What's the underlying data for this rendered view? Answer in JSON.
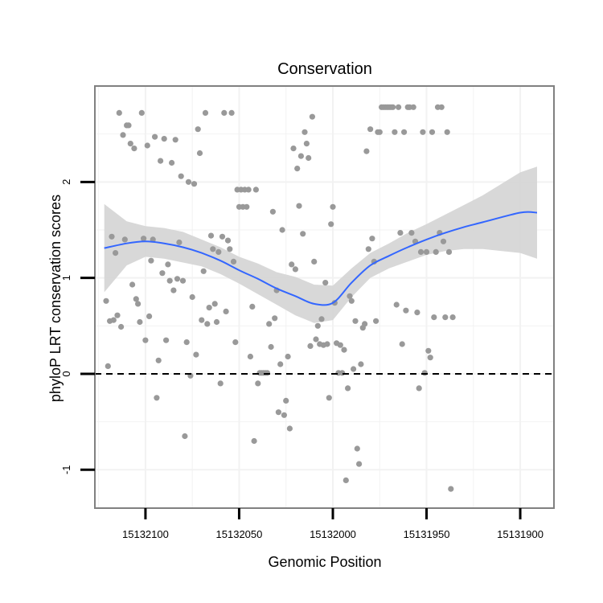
{
  "chart_data": {
    "type": "scatter",
    "title": "Conservation",
    "xlabel": "Genomic Position",
    "ylabel": "phyloP LRT conservation scores",
    "x_reversed": true,
    "xlim": [
      15131882,
      15132127
    ],
    "ylim": [
      -1.4,
      3.0
    ],
    "x_ticks": [
      15132100,
      15132050,
      15132000,
      15131950,
      15131900
    ],
    "x_tick_labels": [
      "15132100",
      "15132050",
      "15132000",
      "15131950",
      "15131900"
    ],
    "y_ticks": [
      -1,
      0,
      1,
      2
    ],
    "y_tick_labels": [
      "-1",
      "0",
      "1",
      "2"
    ],
    "reference_line": {
      "y": 0,
      "style": "dashed"
    },
    "colors": {
      "points": "#999999",
      "smooth": "#3366ff",
      "band": "#d4d4d4",
      "grid": "#f2f2f2",
      "panel_border": "#808080"
    },
    "points": [
      [
        15132121,
        0.76
      ],
      [
        15132120,
        0.08
      ],
      [
        15132119,
        0.55
      ],
      [
        15132118,
        1.43
      ],
      [
        15132117,
        0.56
      ],
      [
        15132116,
        1.26
      ],
      [
        15132115,
        0.61
      ],
      [
        15132114,
        2.72
      ],
      [
        15132113,
        0.49
      ],
      [
        15132112,
        2.49
      ],
      [
        15132111,
        1.4
      ],
      [
        15132110,
        2.59
      ],
      [
        15132109,
        2.59
      ],
      [
        15132108,
        2.4
      ],
      [
        15132107,
        0.93
      ],
      [
        15132106,
        2.35
      ],
      [
        15132105,
        0.78
      ],
      [
        15132104,
        0.73
      ],
      [
        15132103,
        0.54
      ],
      [
        15132102,
        2.72
      ],
      [
        15132101,
        1.41
      ],
      [
        15132100,
        0.35
      ],
      [
        15132099,
        2.38
      ],
      [
        15132098,
        0.6
      ],
      [
        15132097,
        1.18
      ],
      [
        15132096,
        1.4
      ],
      [
        15132095,
        2.47
      ],
      [
        15132094,
        -0.25
      ],
      [
        15132093,
        0.14
      ],
      [
        15132092,
        2.22
      ],
      [
        15132091,
        1.05
      ],
      [
        15132090,
        2.45
      ],
      [
        15132089,
        0.35
      ],
      [
        15132088,
        1.14
      ],
      [
        15132087,
        0.97
      ],
      [
        15132086,
        2.2
      ],
      [
        15132085,
        0.87
      ],
      [
        15132084,
        2.44
      ],
      [
        15132083,
        0.99
      ],
      [
        15132082,
        1.37
      ],
      [
        15132081,
        2.06
      ],
      [
        15132080,
        0.97
      ],
      [
        15132079,
        -0.65
      ],
      [
        15132078,
        0.33
      ],
      [
        15132077,
        2.0
      ],
      [
        15132076,
        -0.02
      ],
      [
        15132075,
        0.8
      ],
      [
        15132074,
        1.98
      ],
      [
        15132073,
        0.2
      ],
      [
        15132072,
        2.55
      ],
      [
        15132071,
        2.3
      ],
      [
        15132070,
        0.56
      ],
      [
        15132069,
        1.07
      ],
      [
        15132068,
        2.72
      ],
      [
        15132067,
        0.52
      ],
      [
        15132066,
        0.69
      ],
      [
        15132065,
        1.44
      ],
      [
        15132064,
        1.3
      ],
      [
        15132063,
        0.73
      ],
      [
        15132062,
        0.54
      ],
      [
        15132061,
        1.27
      ],
      [
        15132060,
        -0.1
      ],
      [
        15132059,
        1.43
      ],
      [
        15132058,
        2.72
      ],
      [
        15132057,
        0.65
      ],
      [
        15132056,
        1.39
      ],
      [
        15132055,
        1.3
      ],
      [
        15132054,
        2.72
      ],
      [
        15132053,
        1.17
      ],
      [
        15132052,
        0.33
      ],
      [
        15132051,
        1.92
      ],
      [
        15132050,
        1.74
      ],
      [
        15132049,
        1.92
      ],
      [
        15132048,
        1.74
      ],
      [
        15132047,
        1.92
      ],
      [
        15132046,
        1.74
      ],
      [
        15132045,
        1.92
      ],
      [
        15132044,
        0.18
      ],
      [
        15132043,
        0.7
      ],
      [
        15132042,
        -0.7
      ],
      [
        15132041,
        1.92
      ],
      [
        15132040,
        -0.1
      ],
      [
        15132039,
        0.01
      ],
      [
        15132038,
        0.01
      ],
      [
        15132037,
        0.01
      ],
      [
        15132036,
        0.01
      ],
      [
        15132035,
        0.01
      ],
      [
        15132034,
        0.52
      ],
      [
        15132033,
        0.28
      ],
      [
        15132032,
        1.69
      ],
      [
        15132031,
        0.58
      ],
      [
        15132030,
        0.87
      ],
      [
        15132029,
        -0.4
      ],
      [
        15132028,
        0.1
      ],
      [
        15132027,
        1.5
      ],
      [
        15132026,
        -0.43
      ],
      [
        15132025,
        -0.28
      ],
      [
        15132024,
        0.18
      ],
      [
        15132023,
        -0.57
      ],
      [
        15132022,
        1.14
      ],
      [
        15132021,
        2.35
      ],
      [
        15132020,
        1.09
      ],
      [
        15132019,
        2.14
      ],
      [
        15132018,
        1.75
      ],
      [
        15132017,
        2.27
      ],
      [
        15132016,
        1.46
      ],
      [
        15132015,
        2.52
      ],
      [
        15132014,
        2.4
      ],
      [
        15132013,
        2.25
      ],
      [
        15132012,
        0.29
      ],
      [
        15132011,
        2.68
      ],
      [
        15132010,
        1.17
      ],
      [
        15132009,
        0.36
      ],
      [
        15132008,
        0.5
      ],
      [
        15132007,
        0.31
      ],
      [
        15132006,
        0.57
      ],
      [
        15132005,
        0.3
      ],
      [
        15132004,
        0.95
      ],
      [
        15132003,
        0.31
      ],
      [
        15132002,
        -0.25
      ],
      [
        15132001,
        1.56
      ],
      [
        15132000,
        1.74
      ],
      [
        15131999,
        0.74
      ],
      [
        15131998,
        0.32
      ],
      [
        15131997,
        0.01
      ],
      [
        15131996,
        0.3
      ],
      [
        15131995,
        0.01
      ],
      [
        15131994,
        0.25
      ],
      [
        15131993,
        -1.11
      ],
      [
        15131992,
        -0.15
      ],
      [
        15131991,
        0.81
      ],
      [
        15131990,
        0.76
      ],
      [
        15131989,
        0.05
      ],
      [
        15131988,
        0.55
      ],
      [
        15131987,
        -0.78
      ],
      [
        15131986,
        -0.94
      ],
      [
        15131985,
        0.1
      ],
      [
        15131984,
        0.48
      ],
      [
        15131983,
        0.52
      ],
      [
        15131982,
        2.32
      ],
      [
        15131981,
        1.3
      ],
      [
        15131980,
        2.55
      ],
      [
        15131979,
        1.41
      ],
      [
        15131978,
        1.17
      ],
      [
        15131977,
        0.55
      ],
      [
        15131976,
        2.52
      ],
      [
        15131975,
        2.52
      ],
      [
        15131974,
        2.78
      ],
      [
        15131973,
        2.78
      ],
      [
        15131972,
        2.78
      ],
      [
        15131971,
        2.78
      ],
      [
        15131970,
        2.78
      ],
      [
        15131969,
        2.78
      ],
      [
        15131968,
        2.78
      ],
      [
        15131967,
        2.52
      ],
      [
        15131966,
        0.72
      ],
      [
        15131965,
        2.78
      ],
      [
        15131964,
        1.47
      ],
      [
        15131963,
        0.31
      ],
      [
        15131962,
        2.52
      ],
      [
        15131961,
        0.66
      ],
      [
        15131960,
        2.78
      ],
      [
        15131959,
        2.78
      ],
      [
        15131958,
        1.47
      ],
      [
        15131957,
        2.78
      ],
      [
        15131956,
        1.38
      ],
      [
        15131955,
        0.64
      ],
      [
        15131954,
        -0.15
      ],
      [
        15131953,
        1.27
      ],
      [
        15131952,
        2.52
      ],
      [
        15131951,
        0.01
      ],
      [
        15131950,
        1.27
      ],
      [
        15131949,
        0.24
      ],
      [
        15131948,
        0.17
      ],
      [
        15131947,
        2.52
      ],
      [
        15131946,
        0.59
      ],
      [
        15131945,
        1.27
      ],
      [
        15131944,
        2.78
      ],
      [
        15131943,
        1.47
      ],
      [
        15131942,
        2.78
      ],
      [
        15131941,
        1.38
      ],
      [
        15131940,
        0.59
      ],
      [
        15131939,
        2.52
      ],
      [
        15131938,
        1.27
      ],
      [
        15131937,
        -1.2
      ],
      [
        15131936,
        0.59
      ]
    ],
    "smooth": {
      "x": [
        15132122,
        15132110,
        15132100,
        15132090,
        15132080,
        15132070,
        15132060,
        15132050,
        15132040,
        15132030,
        15132020,
        15132010,
        15132000,
        15131990,
        15131980,
        15131970,
        15131960,
        15131950,
        15131940,
        15131930,
        15131920,
        15131900,
        15131891
      ],
      "y": [
        1.31,
        1.36,
        1.38,
        1.36,
        1.32,
        1.26,
        1.18,
        1.08,
        0.99,
        0.89,
        0.81,
        0.73,
        0.74,
        0.95,
        1.13,
        1.23,
        1.32,
        1.4,
        1.47,
        1.53,
        1.58,
        1.68,
        1.68
      ],
      "lower": [
        0.85,
        1.13,
        1.22,
        1.2,
        1.16,
        1.12,
        1.04,
        0.94,
        0.83,
        0.72,
        0.61,
        0.53,
        0.56,
        0.8,
        1.0,
        1.1,
        1.17,
        1.24,
        1.28,
        1.3,
        1.3,
        1.26,
        1.2
      ],
      "upper": [
        1.77,
        1.59,
        1.54,
        1.52,
        1.48,
        1.4,
        1.32,
        1.22,
        1.15,
        1.06,
        1.01,
        0.93,
        0.92,
        1.1,
        1.26,
        1.36,
        1.47,
        1.56,
        1.66,
        1.76,
        1.86,
        2.1,
        2.16
      ]
    }
  }
}
